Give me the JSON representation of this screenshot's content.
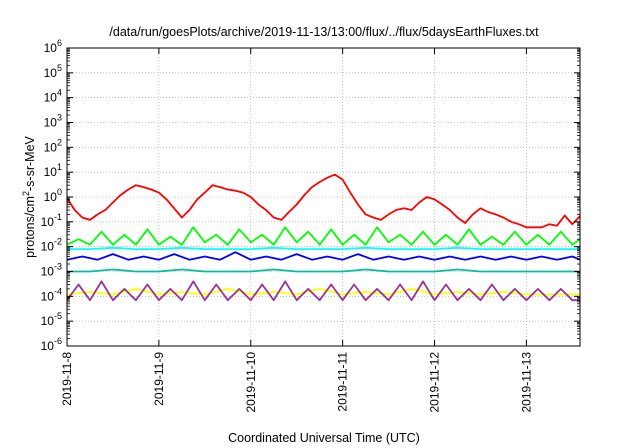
{
  "chart_data": {
    "type": "line",
    "title": "/data/run/goesPlots/archive/2019-11-13/13:00/flux/../flux/5daysEarthFluxes.txt",
    "xlabel": "Coordinated Universal Time (UTC)",
    "ylabel": "protons/cm²-s-sr-MeV",
    "ylim": [
      1e-06,
      1000000.0
    ],
    "yscale": "log",
    "xlim": [
      "2019-11-08T00:00",
      "2019-11-13T14:00"
    ],
    "x_ticks": [
      "2019-11-8",
      "2019-11-9",
      "2019-11-10",
      "2019-11-11",
      "2019-11-12",
      "2019-11-13"
    ],
    "y_ticks": [
      {
        "base": "10",
        "exp": "-6"
      },
      {
        "base": "10",
        "exp": "-5"
      },
      {
        "base": "10",
        "exp": "-4"
      },
      {
        "base": "10",
        "exp": "-3"
      },
      {
        "base": "10",
        "exp": "-2"
      },
      {
        "base": "10",
        "exp": "-1"
      },
      {
        "base": "10",
        "exp": "0"
      },
      {
        "base": "10",
        "exp": "1"
      },
      {
        "base": "10",
        "exp": "2"
      },
      {
        "base": "10",
        "exp": "3"
      },
      {
        "base": "10",
        "exp": "4"
      },
      {
        "base": "10",
        "exp": "5"
      },
      {
        "base": "10",
        "exp": "6"
      }
    ],
    "grid": true,
    "series": [
      {
        "color": "#ff0000",
        "x": [
          "2019-11-08T00:00",
          "2019-11-08T02:00",
          "2019-11-08T04:00",
          "2019-11-08T06:00",
          "2019-11-08T08:00",
          "2019-11-08T10:00",
          "2019-11-08T12:00",
          "2019-11-08T14:00",
          "2019-11-08T16:00",
          "2019-11-08T18:00",
          "2019-11-08T20:00",
          "2019-11-08T22:00",
          "2019-11-09T00:00",
          "2019-11-09T02:00",
          "2019-11-09T04:00",
          "2019-11-09T06:00",
          "2019-11-09T08:00",
          "2019-11-09T10:00",
          "2019-11-09T12:00",
          "2019-11-09T14:00",
          "2019-11-09T16:00",
          "2019-11-09T18:00",
          "2019-11-09T20:00",
          "2019-11-09T22:00",
          "2019-11-10T00:00",
          "2019-11-10T02:00",
          "2019-11-10T04:00",
          "2019-11-10T06:00",
          "2019-11-10T08:00",
          "2019-11-10T10:00",
          "2019-11-10T12:00",
          "2019-11-10T14:00",
          "2019-11-10T16:00",
          "2019-11-10T18:00",
          "2019-11-10T20:00",
          "2019-11-10T22:00",
          "2019-11-11T00:00",
          "2019-11-11T02:00",
          "2019-11-11T04:00",
          "2019-11-11T06:00",
          "2019-11-11T08:00",
          "2019-11-11T10:00",
          "2019-11-11T12:00",
          "2019-11-11T14:00",
          "2019-11-11T16:00",
          "2019-11-11T18:00",
          "2019-11-11T20:00",
          "2019-11-11T22:00",
          "2019-11-12T00:00",
          "2019-11-12T02:00",
          "2019-11-12T04:00",
          "2019-11-12T06:00",
          "2019-11-12T08:00",
          "2019-11-12T10:00",
          "2019-11-12T12:00",
          "2019-11-12T14:00",
          "2019-11-12T16:00",
          "2019-11-12T18:00",
          "2019-11-12T20:00",
          "2019-11-12T22:00",
          "2019-11-13T00:00",
          "2019-11-13T02:00",
          "2019-11-13T04:00",
          "2019-11-13T06:00",
          "2019-11-13T08:00",
          "2019-11-13T10:00",
          "2019-11-13T12:00",
          "2019-11-13T14:00"
        ],
        "y": [
          0.9,
          0.3,
          0.15,
          0.12,
          0.2,
          0.3,
          0.6,
          1.2,
          2,
          3,
          2.5,
          2,
          1.5,
          0.8,
          0.35,
          0.15,
          0.3,
          0.8,
          1.5,
          3,
          2.5,
          2,
          1.8,
          1.5,
          1,
          0.5,
          0.3,
          0.15,
          0.12,
          0.25,
          0.5,
          1.2,
          2.5,
          4,
          6,
          8,
          5,
          1.5,
          0.5,
          0.2,
          0.15,
          0.12,
          0.2,
          0.3,
          0.35,
          0.3,
          0.6,
          1,
          0.8,
          0.5,
          0.3,
          0.15,
          0.09,
          0.2,
          0.35,
          0.25,
          0.2,
          0.15,
          0.1,
          0.08,
          0.06,
          0.06,
          0.06,
          0.08,
          0.07,
          0.18,
          0.08,
          0.17
        ]
      },
      {
        "color": "#00ff00",
        "x": [
          "2019-11-08T00:00",
          "2019-11-08T03:00",
          "2019-11-08T06:00",
          "2019-11-08T09:00",
          "2019-11-08T12:00",
          "2019-11-08T15:00",
          "2019-11-08T18:00",
          "2019-11-08T21:00",
          "2019-11-09T00:00",
          "2019-11-09T03:00",
          "2019-11-09T06:00",
          "2019-11-09T09:00",
          "2019-11-09T12:00",
          "2019-11-09T15:00",
          "2019-11-09T18:00",
          "2019-11-09T21:00",
          "2019-11-10T00:00",
          "2019-11-10T03:00",
          "2019-11-10T06:00",
          "2019-11-10T09:00",
          "2019-11-10T12:00",
          "2019-11-10T15:00",
          "2019-11-10T18:00",
          "2019-11-10T21:00",
          "2019-11-11T00:00",
          "2019-11-11T03:00",
          "2019-11-11T06:00",
          "2019-11-11T09:00",
          "2019-11-11T12:00",
          "2019-11-11T15:00",
          "2019-11-11T18:00",
          "2019-11-11T21:00",
          "2019-11-12T00:00",
          "2019-11-12T03:00",
          "2019-11-12T06:00",
          "2019-11-12T09:00",
          "2019-11-12T12:00",
          "2019-11-12T15:00",
          "2019-11-12T18:00",
          "2019-11-12T21:00",
          "2019-11-13T00:00",
          "2019-11-13T03:00",
          "2019-11-13T06:00",
          "2019-11-13T09:00",
          "2019-11-13T12:00",
          "2019-11-13T14:00"
        ],
        "y": [
          0.012,
          0.02,
          0.012,
          0.04,
          0.012,
          0.03,
          0.012,
          0.05,
          0.012,
          0.025,
          0.012,
          0.06,
          0.015,
          0.03,
          0.012,
          0.05,
          0.015,
          0.03,
          0.012,
          0.06,
          0.015,
          0.04,
          0.012,
          0.05,
          0.012,
          0.03,
          0.012,
          0.06,
          0.015,
          0.03,
          0.012,
          0.04,
          0.012,
          0.03,
          0.012,
          0.05,
          0.012,
          0.025,
          0.012,
          0.04,
          0.012,
          0.03,
          0.012,
          0.04,
          0.012,
          0.02
        ]
      },
      {
        "color": "#00ffff",
        "x": [
          "2019-11-08T00:00",
          "2019-11-08T06:00",
          "2019-11-08T12:00",
          "2019-11-08T18:00",
          "2019-11-09T00:00",
          "2019-11-09T06:00",
          "2019-11-09T12:00",
          "2019-11-09T18:00",
          "2019-11-10T00:00",
          "2019-11-10T06:00",
          "2019-11-10T12:00",
          "2019-11-10T18:00",
          "2019-11-11T00:00",
          "2019-11-11T06:00",
          "2019-11-11T12:00",
          "2019-11-11T18:00",
          "2019-11-12T00:00",
          "2019-11-12T06:00",
          "2019-11-12T12:00",
          "2019-11-12T18:00",
          "2019-11-13T00:00",
          "2019-11-13T06:00",
          "2019-11-13T12:00",
          "2019-11-13T14:00"
        ],
        "y": [
          0.008,
          0.008,
          0.009,
          0.008,
          0.008,
          0.009,
          0.008,
          0.008,
          0.008,
          0.009,
          0.008,
          0.008,
          0.008,
          0.009,
          0.008,
          0.008,
          0.008,
          0.009,
          0.008,
          0.008,
          0.008,
          0.008,
          0.008,
          0.008
        ]
      },
      {
        "color": "#0000ff",
        "x": [
          "2019-11-08T00:00",
          "2019-11-08T04:00",
          "2019-11-08T08:00",
          "2019-11-08T12:00",
          "2019-11-08T16:00",
          "2019-11-08T20:00",
          "2019-11-09T00:00",
          "2019-11-09T04:00",
          "2019-11-09T08:00",
          "2019-11-09T12:00",
          "2019-11-09T16:00",
          "2019-11-09T20:00",
          "2019-11-10T00:00",
          "2019-11-10T04:00",
          "2019-11-10T08:00",
          "2019-11-10T12:00",
          "2019-11-10T16:00",
          "2019-11-10T20:00",
          "2019-11-11T00:00",
          "2019-11-11T04:00",
          "2019-11-11T08:00",
          "2019-11-11T12:00",
          "2019-11-11T16:00",
          "2019-11-11T20:00",
          "2019-11-12T00:00",
          "2019-11-12T04:00",
          "2019-11-12T08:00",
          "2019-11-12T12:00",
          "2019-11-12T16:00",
          "2019-11-12T20:00",
          "2019-11-13T00:00",
          "2019-11-13T04:00",
          "2019-11-13T08:00",
          "2019-11-13T12:00",
          "2019-11-13T14:00"
        ],
        "y": [
          0.003,
          0.004,
          0.003,
          0.005,
          0.003,
          0.004,
          0.003,
          0.005,
          0.003,
          0.004,
          0.003,
          0.006,
          0.003,
          0.004,
          0.003,
          0.005,
          0.003,
          0.004,
          0.003,
          0.005,
          0.003,
          0.004,
          0.003,
          0.004,
          0.003,
          0.004,
          0.003,
          0.004,
          0.003,
          0.004,
          0.003,
          0.004,
          0.003,
          0.004,
          0.003
        ]
      },
      {
        "color": "#00c0a0",
        "x": [
          "2019-11-08T00:00",
          "2019-11-08T06:00",
          "2019-11-08T12:00",
          "2019-11-08T18:00",
          "2019-11-09T00:00",
          "2019-11-09T06:00",
          "2019-11-09T12:00",
          "2019-11-09T18:00",
          "2019-11-10T00:00",
          "2019-11-10T06:00",
          "2019-11-10T12:00",
          "2019-11-10T18:00",
          "2019-11-11T00:00",
          "2019-11-11T06:00",
          "2019-11-11T12:00",
          "2019-11-11T18:00",
          "2019-11-12T00:00",
          "2019-11-12T06:00",
          "2019-11-12T12:00",
          "2019-11-12T18:00",
          "2019-11-13T00:00",
          "2019-11-13T06:00",
          "2019-11-13T12:00",
          "2019-11-13T14:00"
        ],
        "y": [
          0.001,
          0.001,
          0.0012,
          0.001,
          0.001,
          0.0012,
          0.001,
          0.001,
          0.001,
          0.0012,
          0.001,
          0.001,
          0.001,
          0.0012,
          0.001,
          0.001,
          0.001,
          0.0012,
          0.001,
          0.001,
          0.001,
          0.001,
          0.001,
          0.001
        ]
      },
      {
        "color": "#ffff00",
        "x": [
          "2019-11-08T00:00",
          "2019-11-08T06:00",
          "2019-11-08T12:00",
          "2019-11-08T18:00",
          "2019-11-09T00:00",
          "2019-11-09T06:00",
          "2019-11-09T12:00",
          "2019-11-09T18:00",
          "2019-11-10T00:00",
          "2019-11-10T06:00",
          "2019-11-10T12:00",
          "2019-11-10T18:00",
          "2019-11-11T00:00",
          "2019-11-11T06:00",
          "2019-11-11T12:00",
          "2019-11-11T18:00",
          "2019-11-12T00:00",
          "2019-11-12T06:00",
          "2019-11-12T12:00",
          "2019-11-12T18:00",
          "2019-11-13T00:00",
          "2019-11-13T06:00",
          "2019-11-13T12:00",
          "2019-11-13T14:00"
        ],
        "y": [
          0.00012,
          0.00015,
          0.00012,
          0.0002,
          0.00012,
          0.00015,
          0.00012,
          0.0002,
          0.00012,
          0.00015,
          0.00012,
          0.0002,
          0.00012,
          0.00015,
          0.00012,
          0.0002,
          0.00012,
          0.00015,
          0.00012,
          0.00015,
          0.00012,
          0.00012,
          0.00012,
          0.00012
        ]
      },
      {
        "color": "#993399",
        "x": [
          "2019-11-08T00:00",
          "2019-11-08T03:00",
          "2019-11-08T06:00",
          "2019-11-08T09:00",
          "2019-11-08T12:00",
          "2019-11-08T15:00",
          "2019-11-08T18:00",
          "2019-11-08T21:00",
          "2019-11-09T00:00",
          "2019-11-09T03:00",
          "2019-11-09T06:00",
          "2019-11-09T09:00",
          "2019-11-09T12:00",
          "2019-11-09T15:00",
          "2019-11-09T18:00",
          "2019-11-09T21:00",
          "2019-11-10T00:00",
          "2019-11-10T03:00",
          "2019-11-10T06:00",
          "2019-11-10T09:00",
          "2019-11-10T12:00",
          "2019-11-10T15:00",
          "2019-11-10T18:00",
          "2019-11-10T21:00",
          "2019-11-11T00:00",
          "2019-11-11T03:00",
          "2019-11-11T06:00",
          "2019-11-11T09:00",
          "2019-11-11T12:00",
          "2019-11-11T15:00",
          "2019-11-11T18:00",
          "2019-11-11T21:00",
          "2019-11-12T00:00",
          "2019-11-12T03:00",
          "2019-11-12T06:00",
          "2019-11-12T09:00",
          "2019-11-12T12:00",
          "2019-11-12T15:00",
          "2019-11-12T18:00",
          "2019-11-12T21:00",
          "2019-11-13T00:00",
          "2019-11-13T03:00",
          "2019-11-13T06:00",
          "2019-11-13T09:00",
          "2019-11-13T12:00",
          "2019-11-13T14:00"
        ],
        "y": [
          7e-05,
          0.0003,
          7e-05,
          0.0004,
          7e-05,
          0.0002,
          7e-05,
          0.0003,
          7e-05,
          0.0002,
          7e-05,
          0.0004,
          7e-05,
          0.0003,
          7e-05,
          0.0002,
          7e-05,
          0.0003,
          7e-05,
          0.0004,
          7e-05,
          0.0002,
          7e-05,
          0.0003,
          7e-05,
          0.0003,
          7e-05,
          0.0002,
          7e-05,
          0.0003,
          7e-05,
          0.0004,
          7e-05,
          0.0003,
          7e-05,
          0.0002,
          7e-05,
          0.0003,
          7e-05,
          0.0002,
          7e-05,
          0.0002,
          7e-05,
          0.0002,
          7e-05,
          7e-05
        ]
      }
    ]
  }
}
